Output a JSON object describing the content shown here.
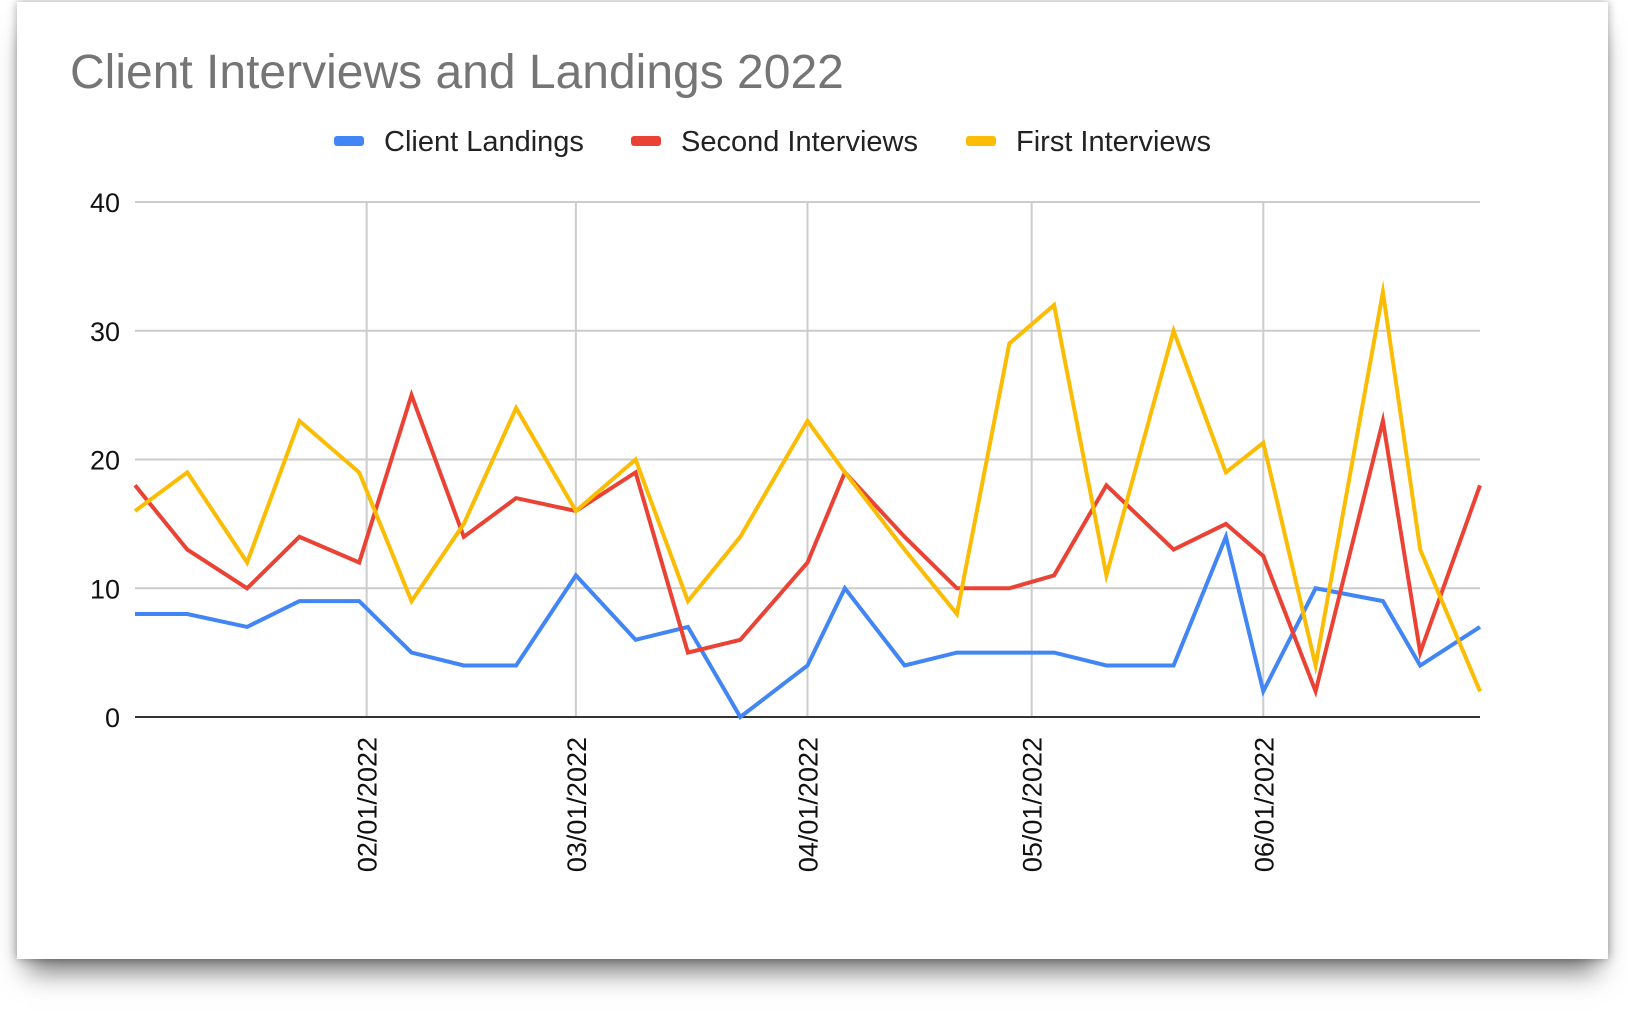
{
  "chart_data": {
    "type": "line",
    "title": "Client Interviews and Landings 2022",
    "xlabel": "",
    "ylabel": "",
    "ylim": [
      0,
      40
    ],
    "yticks": [
      0,
      10,
      20,
      30,
      40
    ],
    "xlim": [
      "2022-01-01",
      "2022-06-30"
    ],
    "xticks": [
      {
        "date": "2022-02-01",
        "label": "02/01/2022"
      },
      {
        "date": "2022-03-01",
        "label": "03/01/2022"
      },
      {
        "date": "2022-04-01",
        "label": "04/01/2022"
      },
      {
        "date": "2022-05-01",
        "label": "05/01/2022"
      },
      {
        "date": "2022-06-01",
        "label": "06/01/2022"
      }
    ],
    "grid": true,
    "legend_position": "top-center",
    "x": [
      "2022-01-01",
      "2022-01-08",
      "2022-01-16",
      "2022-01-23",
      "2022-01-31",
      "2022-02-07",
      "2022-02-14",
      "2022-02-21",
      "2022-03-01",
      "2022-03-09",
      "2022-03-16",
      "2022-03-23",
      "2022-04-01",
      "2022-04-06",
      "2022-04-14",
      "2022-04-21",
      "2022-04-28",
      "2022-05-04",
      "2022-05-11",
      "2022-05-20",
      "2022-05-27",
      "2022-06-01",
      "2022-06-08",
      "2022-06-17",
      "2022-06-22",
      "2022-06-30"
    ],
    "series": [
      {
        "name": "Client Landings",
        "color": "#4285F4",
        "values": [
          8,
          8,
          7,
          9,
          9,
          5,
          4,
          4,
          11,
          6,
          7,
          0,
          4,
          10,
          4,
          5,
          5,
          5,
          4,
          4,
          14,
          2,
          10,
          9,
          4,
          7
        ]
      },
      {
        "name": "Second Interviews",
        "color": "#EA4335",
        "values": [
          18,
          13,
          10,
          14,
          12,
          25,
          14,
          17,
          16,
          19,
          5,
          6,
          12,
          19,
          14,
          10,
          10,
          11,
          18,
          13,
          15,
          12.5,
          2,
          23,
          5,
          18
        ]
      },
      {
        "name": "First Interviews",
        "color": "#FBBC04",
        "values": [
          16,
          19,
          12,
          23,
          19,
          9,
          15,
          24,
          16,
          20,
          9,
          14,
          23,
          19,
          13,
          8,
          29,
          32,
          11,
          30,
          19,
          21.3,
          4,
          33,
          13,
          2
        ]
      }
    ]
  }
}
